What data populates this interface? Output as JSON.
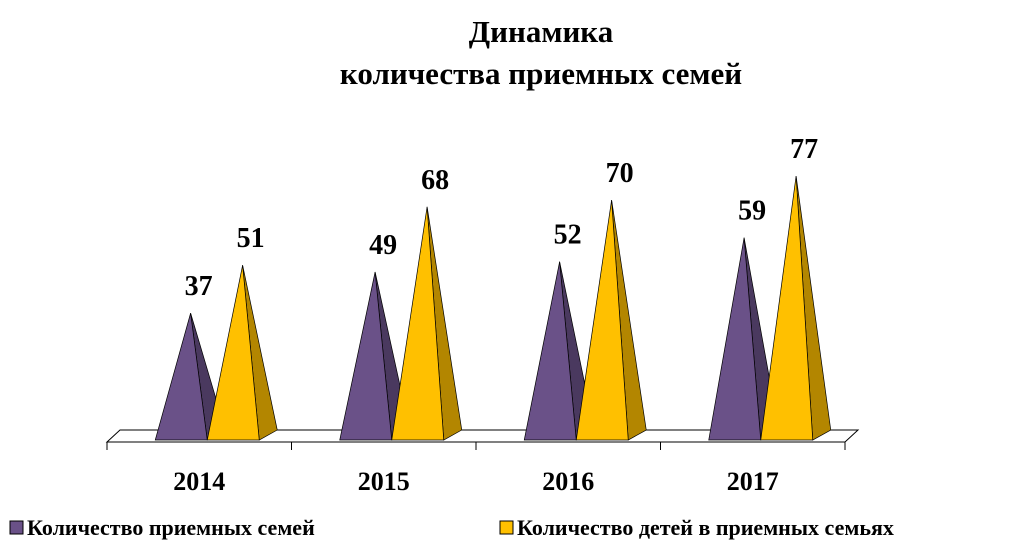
{
  "chart_data": {
    "type": "pyramid",
    "title": [
      "Динамика",
      "количества приемных семей"
    ],
    "categories": [
      "2014",
      "2015",
      "2016",
      "2017"
    ],
    "series": [
      {
        "name": "Количество приемных семей",
        "color": "#6a5188",
        "values": [
          37,
          49,
          52,
          59
        ]
      },
      {
        "name": "Количество детей в приемных семьях",
        "color": "#ffc000",
        "values": [
          51,
          68,
          70,
          77
        ]
      }
    ],
    "legend": "bottom"
  }
}
